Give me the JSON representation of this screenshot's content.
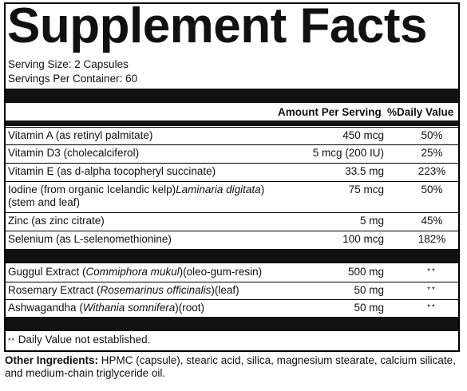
{
  "title": "Supplement Facts",
  "serving_size": "Serving Size: 2 Capsules",
  "servings_per_container": "Servings Per Container: 60",
  "header": {
    "amount": "Amount Per Serving",
    "dv": "%Daily Value"
  },
  "vitamins": [
    {
      "name": "Vitamin A (as retinyl palmitate)",
      "amount": "450 mcg",
      "dv": "50%"
    },
    {
      "name": "Vitamin D3 (cholecalciferol)",
      "amount": "5 mcg (200 IU)",
      "dv": "25%"
    },
    {
      "name": "Vitamin E (as d-alpha tocopheryl succinate)",
      "amount": "33.5 mg",
      "dv": "223%"
    },
    {
      "name": "Iodine (from organic Icelandic kelp)",
      "name_italic": "Laminaria digitata",
      "name_suffix": ")",
      "name_line2": "(stem and leaf)",
      "amount": "75 mcg",
      "dv": "50%"
    },
    {
      "name": "Zinc (as zinc citrate)",
      "amount": "5 mg",
      "dv": "45%"
    },
    {
      "name": "Selenium (as L-selenomethionine)",
      "amount": "100 mcg",
      "dv": "182%"
    }
  ],
  "botanicals": [
    {
      "pre": "Guggul Extract (",
      "italic": "Commiphora mukul",
      "post": ")(oleo-gum-resin)",
      "amount": "500 mg",
      "dv": "**"
    },
    {
      "pre": "Rosemary Extract (",
      "italic": "Rosemarinus officinalis",
      "post": ")(leaf)",
      "amount": "50 mg",
      "dv": "**"
    },
    {
      "pre": "Ashwagandha (",
      "italic": "Withania somnifera",
      "post": ")(root)",
      "amount": "50 mg",
      "dv": "**"
    }
  ],
  "footnote_symbol": "**",
  "footnote_text": " Daily Value not established.",
  "other_ingredients_label": "Other Ingredients:",
  "other_ingredients": " HPMC (capsule), stearic acid, silica, magnesium stearate, calcium silicate, and medium-chain triglyceride oil."
}
